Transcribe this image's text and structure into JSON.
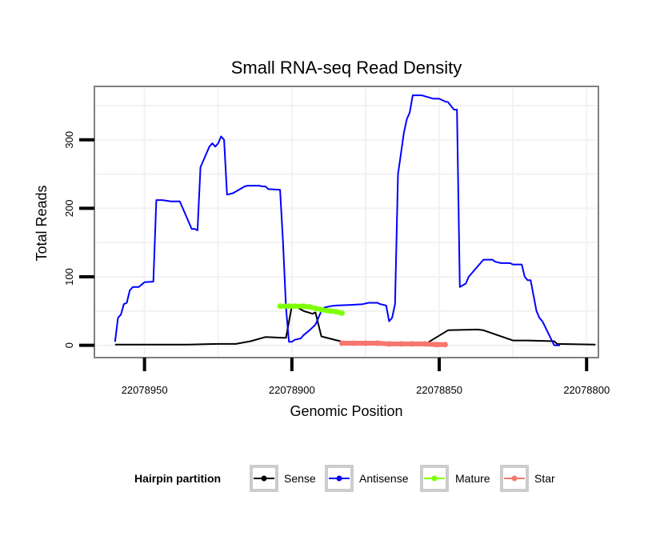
{
  "chart_data": {
    "type": "line",
    "title": "Small RNA-seq Read Density",
    "xlabel": "Genomic Position",
    "ylabel": "Total Reads",
    "x_reversed": true,
    "xlim": [
      22078967,
      22078796
    ],
    "ylim": [
      -18,
      378
    ],
    "x_ticks": [
      22078950,
      22078900,
      22078850,
      22078800
    ],
    "x_tick_labels": [
      "22078950",
      "22078900",
      "22078850",
      "22078800"
    ],
    "y_ticks": [
      0,
      100,
      200,
      300
    ],
    "y_tick_labels": [
      "0",
      "100",
      "200",
      "300"
    ],
    "grid": true,
    "legend": {
      "title": "Hairpin partition",
      "position": "bottom",
      "entries": [
        "Sense",
        "Antisense",
        "Mature",
        "Star"
      ]
    },
    "series": [
      {
        "name": "Sense",
        "color": "#000000",
        "x": [
          22078960,
          22078935,
          22078925,
          22078919,
          22078914,
          22078909,
          22078903,
          22078902,
          22078900,
          22078898,
          22078896,
          22078893,
          22078892,
          22078890,
          22078880,
          22078874,
          22078866,
          22078863,
          22078855,
          22078847,
          22078837,
          22078835,
          22078825,
          22078820,
          22078811,
          22078810,
          22078797
        ],
        "values": [
          1,
          1,
          2,
          2,
          6,
          12,
          11,
          11,
          57,
          55,
          50,
          46,
          48,
          13,
          2,
          1,
          1,
          1,
          1,
          22,
          23,
          22,
          7,
          7,
          6,
          2,
          1
        ]
      },
      {
        "name": "Antisense",
        "color": "#0000ff",
        "x": [
          22078960,
          22078959,
          22078958,
          22078957,
          22078956,
          22078955,
          22078954,
          22078953,
          22078952,
          22078950,
          22078947,
          22078946,
          22078945,
          22078944,
          22078941,
          22078940,
          22078939,
          22078938,
          22078937,
          22078934,
          22078933,
          22078932,
          22078931,
          22078930,
          22078929,
          22078928,
          22078927,
          22078926,
          22078925,
          22078924,
          22078923,
          22078922,
          22078920,
          22078916,
          22078915,
          22078914,
          22078913,
          22078911,
          22078910,
          22078909,
          22078908,
          22078904,
          22078903,
          22078902,
          22078901,
          22078900,
          22078899,
          22078897,
          22078896,
          22078894,
          22078892,
          22078891,
          22078890,
          22078889,
          22078887,
          22078885,
          22078880,
          22078876,
          22078874,
          22078871,
          22078870,
          22078868,
          22078867,
          22078866,
          22078865,
          22078864,
          22078863,
          22078862,
          22078861,
          22078860,
          22078859,
          22078856,
          22078852,
          22078850,
          22078849,
          22078848,
          22078847,
          22078845,
          22078844,
          22078843,
          22078841,
          22078840,
          22078838,
          22078835,
          22078832,
          22078831,
          22078829,
          22078828,
          22078826,
          22078825,
          22078822,
          22078821,
          22078820,
          22078819,
          22078817,
          22078816,
          22078815,
          22078811,
          22078809
        ],
        "values": [
          5,
          40,
          45,
          60,
          62,
          80,
          85,
          85,
          85,
          92,
          93,
          212,
          212,
          212,
          210,
          210,
          210,
          210,
          200,
          170,
          170,
          168,
          260,
          270,
          280,
          290,
          295,
          290,
          295,
          305,
          300,
          220,
          222,
          232,
          233,
          233,
          233,
          233,
          232,
          232,
          228,
          227,
          150,
          55,
          5,
          5,
          8,
          10,
          15,
          22,
          30,
          40,
          50,
          55,
          57,
          58,
          59,
          60,
          62,
          62,
          60,
          58,
          35,
          40,
          60,
          250,
          280,
          310,
          330,
          340,
          365,
          365,
          360,
          360,
          358,
          356,
          355,
          344,
          344,
          85,
          90,
          100,
          110,
          125,
          125,
          122,
          120,
          120,
          120,
          118,
          118,
          100,
          95,
          95,
          50,
          40,
          35,
          0,
          0
        ]
      },
      {
        "name": "Mature",
        "color": "#7fff00",
        "x": [
          22078904,
          22078901,
          22078899,
          22078896,
          22078894,
          22078892,
          22078890,
          22078887,
          22078885,
          22078883
        ],
        "values": [
          57,
          57,
          57,
          57,
          56,
          54,
          52,
          50,
          49,
          47
        ]
      },
      {
        "name": "Star",
        "color": "#f8766d",
        "x": [
          22078883,
          22078879,
          22078875,
          22078871,
          22078867,
          22078863,
          22078859,
          22078855,
          22078851,
          22078848
        ],
        "values": [
          3,
          3,
          3,
          3,
          2,
          2,
          2,
          2,
          1,
          1
        ]
      }
    ]
  }
}
